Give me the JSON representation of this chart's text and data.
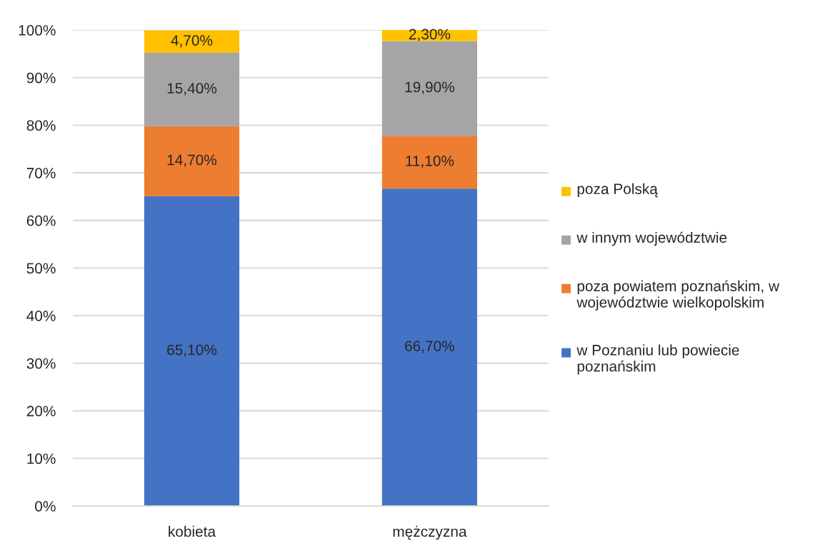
{
  "chart_data": {
    "type": "bar",
    "stacked": true,
    "categories": [
      "kobieta",
      "mężczyzna"
    ],
    "series": [
      {
        "name": "w Poznaniu lub powiecie poznańskim",
        "color": "#4472c4",
        "values": [
          65.1,
          66.7
        ],
        "value_labels": [
          "65,10%",
          "66,70%"
        ]
      },
      {
        "name": "poza powiatem poznańskim, w województwie wielkopolskim",
        "color": "#ed7d31",
        "values": [
          14.7,
          11.1
        ],
        "value_labels": [
          "14,70%",
          "11,10%"
        ]
      },
      {
        "name": "w innym województwie",
        "color": "#a5a5a5",
        "values": [
          15.4,
          19.9
        ],
        "value_labels": [
          "15,40%",
          "19,90%"
        ]
      },
      {
        "name": "poza Polską",
        "color": "#ffc000",
        "values": [
          4.7,
          2.3
        ],
        "value_labels": [
          "4,70%",
          "2,30%"
        ]
      }
    ],
    "ylim": [
      0,
      100
    ],
    "yticks": [
      {
        "value": 0,
        "label": "0%"
      },
      {
        "value": 10,
        "label": "10%"
      },
      {
        "value": 20,
        "label": "20%"
      },
      {
        "value": 30,
        "label": "30%"
      },
      {
        "value": 40,
        "label": "40%"
      },
      {
        "value": 50,
        "label": "50%"
      },
      {
        "value": 60,
        "label": "60%"
      },
      {
        "value": 70,
        "label": "70%"
      },
      {
        "value": 80,
        "label": "80%"
      },
      {
        "value": 90,
        "label": "90%"
      },
      {
        "value": 100,
        "label": "100%"
      }
    ],
    "grid": "y",
    "legend": "right"
  }
}
